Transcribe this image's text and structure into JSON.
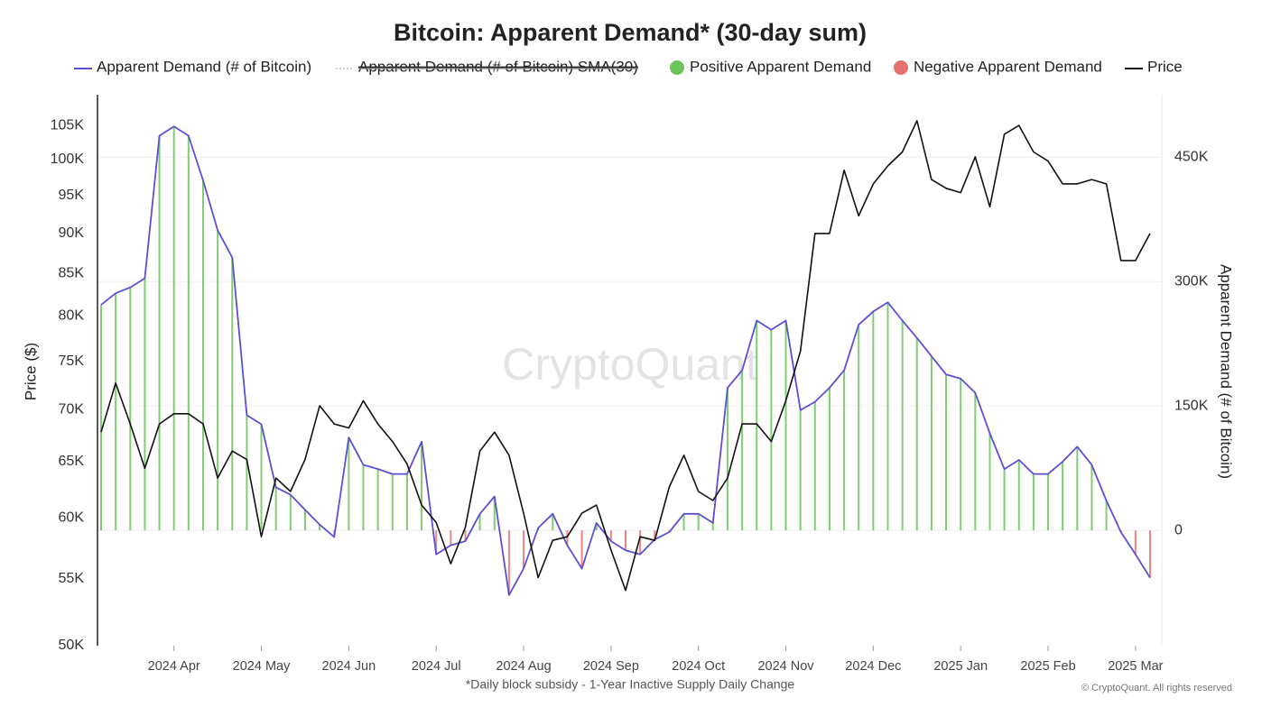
{
  "chart_data": {
    "type": "line",
    "title": "Bitcoin: Apparent Demand* (30-day sum)",
    "footnote": "*Daily block subsidy - 1-Year Inactive Supply Daily Change",
    "credit": "© CryptoQuant. All rights reserved",
    "watermark": "CryptoQuant",
    "ylabel": "Price ($)",
    "y2label": "Apparent Demand (# of Bitcoin)",
    "yscale": "log",
    "grid": "y2",
    "categories": [
      null,
      null,
      null,
      null,
      null,
      "2024 Apr",
      null,
      null,
      null,
      null,
      null,
      "2024 May",
      null,
      null,
      null,
      null,
      null,
      "2024 Jun",
      null,
      null,
      null,
      null,
      null,
      "2024 Jul",
      null,
      null,
      null,
      null,
      null,
      "2024 Aug",
      null,
      null,
      null,
      null,
      null,
      "2024 Sep",
      null,
      null,
      null,
      null,
      null,
      "2024 Oct",
      null,
      null,
      null,
      null,
      null,
      "2024 Nov",
      null,
      null,
      null,
      null,
      null,
      "2024 Dec",
      null,
      null,
      null,
      null,
      null,
      "2025 Jan",
      null,
      null,
      null,
      null,
      null,
      "2025 Feb",
      null,
      null,
      null,
      null,
      null,
      "2025 Mar",
      null
    ],
    "ylim": [
      50000,
      109000
    ],
    "yticks": [
      {
        "value": 50000,
        "label": "50K"
      },
      {
        "value": 55000,
        "label": "55K"
      },
      {
        "value": 60000,
        "label": "60K"
      },
      {
        "value": 65000,
        "label": "65K"
      },
      {
        "value": 70000,
        "label": "70K"
      },
      {
        "value": 75000,
        "label": "75K"
      },
      {
        "value": 80000,
        "label": "80K"
      },
      {
        "value": 85000,
        "label": "85K"
      },
      {
        "value": 90000,
        "label": "90K"
      },
      {
        "value": 95000,
        "label": "95K"
      },
      {
        "value": 100000,
        "label": "100K"
      },
      {
        "value": 105000,
        "label": "105K"
      }
    ],
    "y2lim": [
      -139000,
      520000
    ],
    "y2ticks": [
      0,
      {
        "value": 150000,
        "label": "150K"
      },
      {
        "value": 300000,
        "label": "300K"
      },
      {
        "value": 450000,
        "label": "450K"
      }
    ],
    "series": [
      {
        "name": "Apparent Demand (# of Bitcoin)",
        "type": "line",
        "axis": "y2",
        "color": "#5b4fd6",
        "values": [
          272000,
          286000,
          293000,
          304000,
          476000,
          487000,
          476000,
          422000,
          362000,
          329000,
          139000,
          128000,
          52000,
          43000,
          25000,
          7000,
          -8000,
          112000,
          79000,
          74000,
          68000,
          68000,
          107000,
          -29000,
          -18000,
          -13000,
          20000,
          41000,
          -78000,
          -46000,
          3000,
          20000,
          -18000,
          -46000,
          9000,
          -13000,
          -24000,
          -29000,
          -11000,
          -2000,
          20000,
          20000,
          9000,
          172000,
          193000,
          253000,
          242000,
          253000,
          145000,
          155000,
          172000,
          193000,
          248000,
          264000,
          275000,
          253000,
          232000,
          210000,
          188000,
          183000,
          166000,
          117000,
          74000,
          85000,
          68000,
          68000,
          83000,
          101000,
          79000,
          36000,
          -2000,
          -29000,
          -57000
        ]
      },
      {
        "name": "Apparent Demand (# of Bitcoin) SMA(30)",
        "type": "line",
        "axis": "y2",
        "color": "#9e9e9e",
        "hidden": true
      },
      {
        "name": "Positive Apparent Demand",
        "type": "bar",
        "of": 0,
        "sign": "positive",
        "color": "#6cc35a"
      },
      {
        "name": "Negative Apparent Demand",
        "type": "bar",
        "of": 0,
        "sign": "negative",
        "color": "#e5716d"
      },
      {
        "name": "Price",
        "type": "line",
        "axis": "y",
        "color": "#111111",
        "values": [
          67800,
          72700,
          68600,
          64400,
          68600,
          69600,
          69600,
          68600,
          63500,
          66000,
          65200,
          58400,
          63500,
          62300,
          65200,
          70400,
          68600,
          68200,
          70900,
          68600,
          66900,
          64800,
          61100,
          59600,
          56200,
          59200,
          66000,
          67800,
          65600,
          60400,
          55100,
          58100,
          58400,
          60400,
          61100,
          57300,
          54100,
          58400,
          58100,
          62700,
          65600,
          62300,
          61500,
          63500,
          68600,
          68600,
          66900,
          70900,
          76100,
          90000,
          90000,
          98500,
          92300,
          96600,
          99100,
          101100,
          105700,
          97200,
          96000,
          95400,
          100400,
          93500,
          103700,
          105000,
          101100,
          99800,
          96600,
          96600,
          97200,
          96600,
          86600,
          86600,
          90000
        ]
      }
    ]
  }
}
